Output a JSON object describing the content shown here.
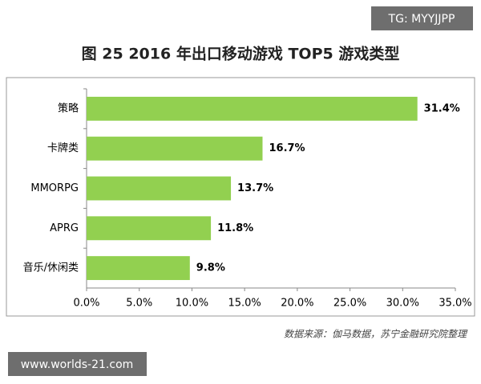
{
  "chart_data": {
    "type": "bar",
    "orientation": "horizontal",
    "title": "图 25  2016 年出口移动游戏 TOP5 游戏类型",
    "categories": [
      "策略",
      "卡牌类",
      "MMORPG",
      "APRG",
      "音乐/休闲类"
    ],
    "values": [
      31.4,
      16.7,
      13.7,
      11.8,
      9.8
    ],
    "value_labels": [
      "31.4%",
      "16.7%",
      "13.7%",
      "11.8%",
      "9.8%"
    ],
    "color": "#92d050",
    "xlim": [
      0,
      35
    ],
    "xticks": [
      {
        "value": 0,
        "label": "0.0%"
      },
      {
        "value": 5,
        "label": "5.0%"
      },
      {
        "value": 10,
        "label": "10.0%"
      },
      {
        "value": 15,
        "label": "15.0%"
      },
      {
        "value": 20,
        "label": "20.0%"
      },
      {
        "value": 25,
        "label": "25.0%"
      },
      {
        "value": 30,
        "label": "30.0%"
      },
      {
        "value": 35,
        "label": "35.0%"
      }
    ],
    "grid": false,
    "source": "数据来源：伽马数据，苏宁金融研究院整理",
    "watermark_top": "TG: MYYJJPP",
    "watermark_bottom": "www.worlds-21.com"
  }
}
